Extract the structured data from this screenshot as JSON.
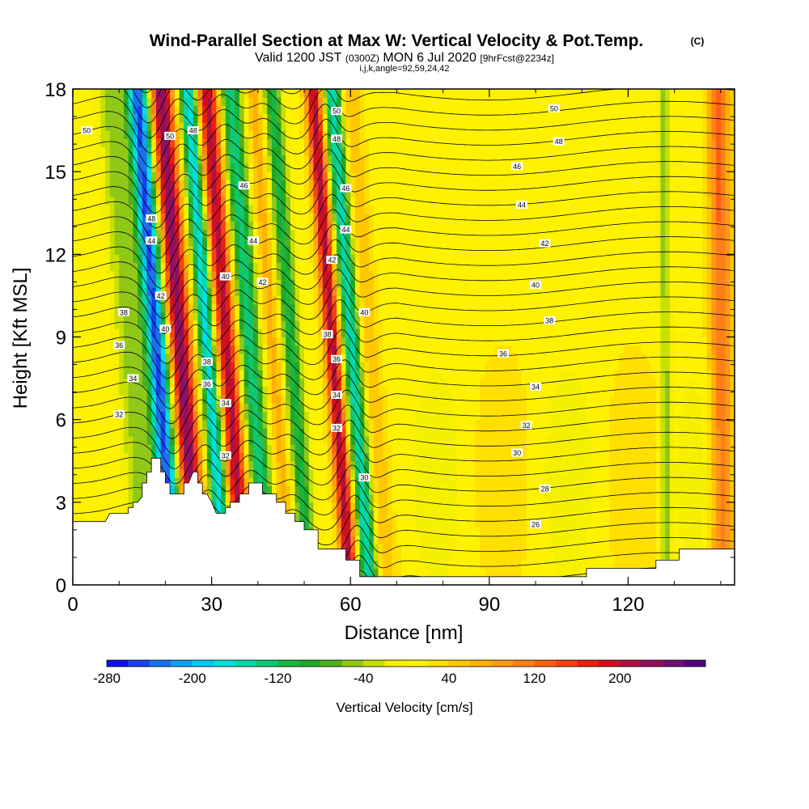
{
  "title": "Wind-Parallel Section at Max W: Vertical Velocity & Pot.Temp.",
  "title_mark": "(C)",
  "subtitle_main": "Valid 1200 JST",
  "subtitle_utc": "(0300Z)",
  "subtitle_date": "MON 6 Jul 2020",
  "subtitle_fcst": "[9hrFcst@2234z]",
  "section_info": "i,j,k,angle=92,59,24,42",
  "colors": {
    "terrain": "#ffffff",
    "contour": "#000000",
    "frame": "#000000"
  },
  "chart_data": {
    "type": "heatmap",
    "xlabel": "Distance [nm]",
    "ylabel": "Height [Kft MSL]",
    "xlim": [
      0,
      143
    ],
    "ylim": [
      0,
      18
    ],
    "xticks": [
      "0",
      "30",
      "60",
      "90",
      "120"
    ],
    "yticks": [
      "0",
      "3",
      "6",
      "9",
      "12",
      "15",
      "18"
    ],
    "grid": false,
    "field": "Vertical Velocity",
    "colorbar": {
      "label": "Vertical Velocity [cm/s]",
      "ticks": [
        "-280",
        "-200",
        "-120",
        "-40",
        "40",
        "120",
        "200"
      ],
      "min": -280,
      "max": 280,
      "colors": [
        "#1010ee",
        "#1a40f0",
        "#1c70f0",
        "#10a0f0",
        "#00c8f0",
        "#00e0e0",
        "#00d8a8",
        "#10c870",
        "#18b840",
        "#20a828",
        "#50b020",
        "#90c818",
        "#c8e000",
        "#f5f000",
        "#fff200",
        "#ffe000",
        "#ffc800",
        "#ffb000",
        "#ff9818",
        "#ff8018",
        "#ff6010",
        "#f84010",
        "#e82010",
        "#d01020",
        "#b01040",
        "#901060",
        "#701070",
        "#500080"
      ]
    },
    "wind_bands": [
      {
        "x": 12,
        "w": -60,
        "width": 3
      },
      {
        "x": 18,
        "w": -260,
        "width": 2.5
      },
      {
        "x": 23,
        "w": 230,
        "width": 2.5
      },
      {
        "x": 29,
        "w": -200,
        "width": 2.0
      },
      {
        "x": 33,
        "w": 200,
        "width": 2.5
      },
      {
        "x": 38,
        "w": -150,
        "width": 2.5
      },
      {
        "x": 43,
        "w": 60,
        "width": 2.0
      },
      {
        "x": 47,
        "w": -120,
        "width": 2.0
      },
      {
        "x": 56,
        "w": 200,
        "width": 1.8
      },
      {
        "x": 60,
        "w": -170,
        "width": 2.0
      },
      {
        "x": 64,
        "w": 50,
        "width": 2.0
      },
      {
        "x": 128,
        "w": -60,
        "width": 1.2
      },
      {
        "x": 140,
        "w": 110,
        "width": 2.5
      }
    ],
    "theta_contours": {
      "levels": [
        26,
        28,
        30,
        32,
        34,
        36,
        38,
        40,
        42,
        44,
        46,
        48,
        50
      ],
      "labels": [
        {
          "text": "50",
          "x": 3,
          "y": 16.5
        },
        {
          "text": "50",
          "x": 21,
          "y": 16.3
        },
        {
          "text": "48",
          "x": 26,
          "y": 16.5
        },
        {
          "text": "46",
          "x": 37,
          "y": 14.5
        },
        {
          "text": "48",
          "x": 17,
          "y": 13.3
        },
        {
          "text": "44",
          "x": 17,
          "y": 12.5
        },
        {
          "text": "44",
          "x": 39,
          "y": 12.5
        },
        {
          "text": "42",
          "x": 19,
          "y": 10.5
        },
        {
          "text": "42",
          "x": 41,
          "y": 11
        },
        {
          "text": "40",
          "x": 20,
          "y": 9.3
        },
        {
          "text": "40",
          "x": 33,
          "y": 11.2
        },
        {
          "text": "38",
          "x": 11,
          "y": 9.9
        },
        {
          "text": "36",
          "x": 10,
          "y": 8.7
        },
        {
          "text": "34",
          "x": 13,
          "y": 7.5
        },
        {
          "text": "32",
          "x": 10,
          "y": 6.2
        },
        {
          "text": "38",
          "x": 29,
          "y": 8.1
        },
        {
          "text": "36",
          "x": 29,
          "y": 7.3
        },
        {
          "text": "34",
          "x": 33,
          "y": 6.6
        },
        {
          "text": "32",
          "x": 33,
          "y": 4.7
        },
        {
          "text": "50",
          "x": 57,
          "y": 17.2
        },
        {
          "text": "48",
          "x": 57,
          "y": 16.2
        },
        {
          "text": "46",
          "x": 59,
          "y": 14.4
        },
        {
          "text": "44",
          "x": 59,
          "y": 12.9
        },
        {
          "text": "42",
          "x": 56,
          "y": 11.8
        },
        {
          "text": "40",
          "x": 63,
          "y": 9.9
        },
        {
          "text": "38",
          "x": 55,
          "y": 9.1
        },
        {
          "text": "36",
          "x": 57,
          "y": 8.2
        },
        {
          "text": "34",
          "x": 57,
          "y": 6.9
        },
        {
          "text": "32",
          "x": 57,
          "y": 5.7
        },
        {
          "text": "30",
          "x": 63,
          "y": 3.9
        },
        {
          "text": "50",
          "x": 104,
          "y": 17.3
        },
        {
          "text": "48",
          "x": 105,
          "y": 16.1
        },
        {
          "text": "46",
          "x": 96,
          "y": 15.2
        },
        {
          "text": "44",
          "x": 97,
          "y": 13.8
        },
        {
          "text": "42",
          "x": 102,
          "y": 12.4
        },
        {
          "text": "40",
          "x": 100,
          "y": 10.9
        },
        {
          "text": "38",
          "x": 103,
          "y": 9.6
        },
        {
          "text": "36",
          "x": 93,
          "y": 8.4
        },
        {
          "text": "34",
          "x": 100,
          "y": 7.2
        },
        {
          "text": "32",
          "x": 98,
          "y": 5.8
        },
        {
          "text": "30",
          "x": 96,
          "y": 4.8
        },
        {
          "text": "28",
          "x": 102,
          "y": 3.5
        },
        {
          "text": "26",
          "x": 100,
          "y": 2.2
        }
      ]
    },
    "terrain": [
      [
        0,
        2.3
      ],
      [
        7,
        2.3
      ],
      [
        8,
        2.6
      ],
      [
        12,
        2.6
      ],
      [
        12,
        2.8
      ],
      [
        13,
        2.8
      ],
      [
        13,
        3.0
      ],
      [
        14,
        3.0
      ],
      [
        15,
        3.2
      ],
      [
        15,
        3.7
      ],
      [
        16,
        3.7
      ],
      [
        16,
        4.1
      ],
      [
        17,
        4.1
      ],
      [
        17,
        4.6
      ],
      [
        19,
        4.6
      ],
      [
        19,
        4.1
      ],
      [
        20,
        4.1
      ],
      [
        20,
        3.7
      ],
      [
        21,
        3.7
      ],
      [
        21,
        3.3
      ],
      [
        24,
        3.3
      ],
      [
        24,
        3.7
      ],
      [
        25,
        3.7
      ],
      [
        26,
        4.1
      ],
      [
        27,
        4.1
      ],
      [
        27,
        3.7
      ],
      [
        28,
        3.7
      ],
      [
        28,
        3.3
      ],
      [
        29,
        3.3
      ],
      [
        30,
        3.0
      ],
      [
        31,
        2.6
      ],
      [
        33,
        2.6
      ],
      [
        33,
        2.8
      ],
      [
        34,
        2.8
      ],
      [
        34,
        3.0
      ],
      [
        36,
        3.0
      ],
      [
        36,
        3.3
      ],
      [
        38,
        3.3
      ],
      [
        38,
        3.7
      ],
      [
        41,
        3.7
      ],
      [
        41,
        3.3
      ],
      [
        44,
        3.3
      ],
      [
        44,
        3.0
      ],
      [
        46,
        3.0
      ],
      [
        46,
        2.6
      ],
      [
        48,
        2.6
      ],
      [
        48,
        2.3
      ],
      [
        50,
        2.3
      ],
      [
        50,
        2.0
      ],
      [
        53,
        2.0
      ],
      [
        53,
        1.3
      ],
      [
        59,
        1.3
      ],
      [
        59,
        0.9
      ],
      [
        62,
        0.9
      ],
      [
        62,
        0.3
      ],
      [
        71,
        0.3
      ],
      [
        71,
        0.3
      ],
      [
        111,
        0.3
      ],
      [
        111,
        0.6
      ],
      [
        126,
        0.6
      ],
      [
        126,
        0.9
      ],
      [
        131,
        0.9
      ],
      [
        131,
        1.3
      ],
      [
        143,
        1.3
      ]
    ]
  }
}
